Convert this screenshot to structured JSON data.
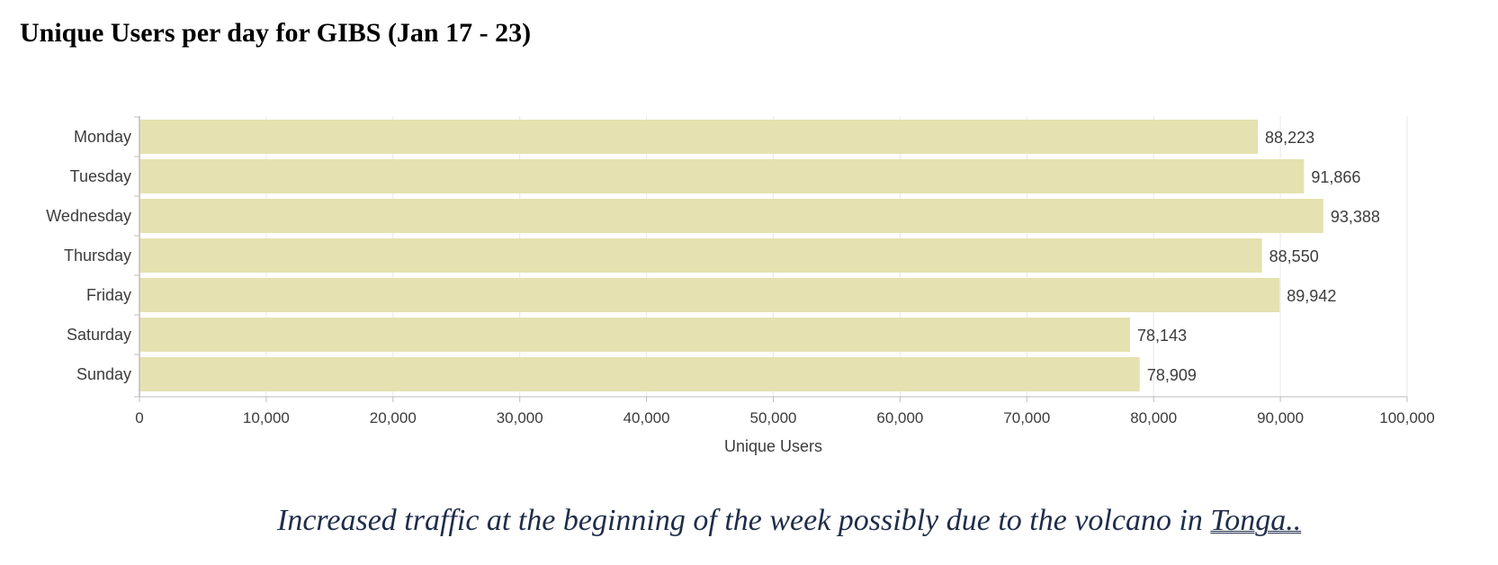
{
  "page": {
    "title": "Unique Users per day for GIBS (Jan 17 - 23)",
    "note": {
      "text": "Increased traffic at the beginning of the week possibly due to the volcano in ",
      "link_text": "Tonga..",
      "color": "#1f2d4a"
    }
  },
  "chart_data": {
    "type": "bar",
    "orientation": "horizontal",
    "title": "Unique Users per day for GIBS (Jan 17 - 23)",
    "categories": [
      "Monday",
      "Tuesday",
      "Wednesday",
      "Thursday",
      "Friday",
      "Saturday",
      "Sunday"
    ],
    "values": [
      88223,
      91866,
      93388,
      88550,
      89942,
      78143,
      78909
    ],
    "data_labels": [
      "88,223",
      "91,866",
      "93,388",
      "88,550",
      "89,942",
      "78,143",
      "78,909"
    ],
    "xlabel": "Unique Users",
    "ylabel": "",
    "xlim": [
      0,
      100000
    ],
    "x_ticks": [
      0,
      10000,
      20000,
      30000,
      40000,
      50000,
      60000,
      70000,
      80000,
      90000,
      100000
    ],
    "x_tick_labels": [
      "0",
      "10,000",
      "20,000",
      "30,000",
      "40,000",
      "50,000",
      "60,000",
      "70,000",
      "80,000",
      "90,000",
      "100,000"
    ],
    "grid": true,
    "legend": "none",
    "colors": {
      "bar": "#e6e1b0",
      "grid": "#e8e8e8",
      "axis": "#bdbdbd",
      "text": "#3c3c3c"
    }
  }
}
